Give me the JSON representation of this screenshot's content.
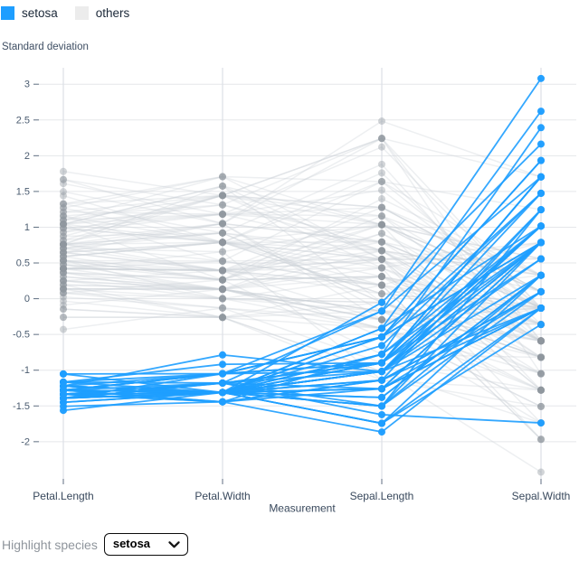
{
  "legend": {
    "items": [
      {
        "label": "setosa",
        "color": "#1E9EFF"
      },
      {
        "label": "others",
        "color": "#ececec"
      }
    ]
  },
  "controls": {
    "label": "Highlight species",
    "selected": "setosa"
  },
  "chart_data": {
    "type": "line",
    "variant": "parallel-coordinates",
    "title": "",
    "ylabel": "Standard deviation",
    "xlabel": "Measurement",
    "categories": [
      "Petal.Length",
      "Petal.Width",
      "Sepal.Length",
      "Sepal.Width"
    ],
    "yticks": [
      3,
      2.5,
      2,
      1.5,
      1,
      0.5,
      0,
      -0.5,
      -1,
      -1.5,
      -2
    ],
    "ytick_labels": [
      "3",
      "2.5",
      "2",
      "1.5",
      "1",
      "0.5",
      "0",
      "-0.5",
      "-1",
      "-1.5",
      "-2"
    ],
    "ylim": [
      -2.52,
      3.23
    ],
    "grid": true,
    "legend_position": "top-left",
    "highlight": "setosa",
    "normalization": "each measurement standardized to z-scores (standard deviations) across all 150 samples; rows below are raw values in category order",
    "series": [
      {
        "name": "setosa",
        "highlight": true,
        "color": "#1E9EFF",
        "dot_color": "#1E9EFF",
        "rows": [
          [
            1.4,
            0.2,
            5.1,
            3.5
          ],
          [
            1.4,
            0.2,
            4.9,
            3.0
          ],
          [
            1.3,
            0.2,
            4.7,
            3.2
          ],
          [
            1.5,
            0.2,
            4.6,
            3.1
          ],
          [
            1.4,
            0.2,
            5.0,
            3.6
          ],
          [
            1.7,
            0.4,
            5.4,
            3.9
          ],
          [
            1.4,
            0.3,
            4.6,
            3.4
          ],
          [
            1.5,
            0.2,
            5.0,
            3.4
          ],
          [
            1.4,
            0.2,
            4.4,
            2.9
          ],
          [
            1.5,
            0.1,
            4.9,
            3.1
          ],
          [
            1.5,
            0.2,
            5.4,
            3.7
          ],
          [
            1.6,
            0.2,
            4.8,
            3.4
          ],
          [
            1.4,
            0.1,
            4.8,
            3.0
          ],
          [
            1.1,
            0.1,
            4.3,
            3.0
          ],
          [
            1.2,
            0.2,
            5.8,
            4.0
          ],
          [
            1.5,
            0.4,
            5.7,
            4.4
          ],
          [
            1.3,
            0.4,
            5.4,
            3.9
          ],
          [
            1.4,
            0.3,
            5.1,
            3.5
          ],
          [
            1.7,
            0.3,
            5.7,
            3.8
          ],
          [
            1.5,
            0.3,
            5.1,
            3.8
          ],
          [
            1.7,
            0.2,
            5.4,
            3.4
          ],
          [
            1.5,
            0.4,
            5.1,
            3.7
          ],
          [
            1.0,
            0.2,
            4.6,
            3.6
          ],
          [
            1.7,
            0.5,
            5.1,
            3.3
          ],
          [
            1.9,
            0.2,
            4.8,
            3.4
          ],
          [
            1.6,
            0.2,
            5.0,
            3.0
          ],
          [
            1.6,
            0.4,
            5.0,
            3.4
          ],
          [
            1.5,
            0.2,
            5.2,
            3.5
          ],
          [
            1.4,
            0.2,
            5.2,
            3.4
          ],
          [
            1.6,
            0.2,
            4.7,
            3.2
          ],
          [
            1.6,
            0.2,
            4.8,
            3.1
          ],
          [
            1.5,
            0.4,
            5.4,
            3.4
          ],
          [
            1.5,
            0.1,
            5.2,
            4.1
          ],
          [
            1.4,
            0.2,
            5.5,
            4.2
          ],
          [
            1.5,
            0.2,
            4.9,
            3.1
          ],
          [
            1.2,
            0.2,
            5.0,
            3.2
          ],
          [
            1.3,
            0.2,
            5.5,
            3.5
          ],
          [
            1.4,
            0.1,
            4.9,
            3.6
          ],
          [
            1.3,
            0.2,
            4.4,
            3.0
          ],
          [
            1.5,
            0.2,
            5.1,
            3.4
          ],
          [
            1.3,
            0.3,
            5.0,
            3.5
          ],
          [
            1.3,
            0.3,
            4.5,
            2.3
          ],
          [
            1.3,
            0.2,
            4.4,
            3.2
          ],
          [
            1.6,
            0.6,
            5.0,
            3.5
          ],
          [
            1.9,
            0.4,
            5.1,
            3.8
          ],
          [
            1.4,
            0.3,
            4.8,
            3.0
          ],
          [
            1.6,
            0.2,
            5.1,
            3.8
          ],
          [
            1.4,
            0.2,
            4.6,
            3.2
          ],
          [
            1.5,
            0.2,
            5.3,
            3.7
          ],
          [
            1.4,
            0.2,
            5.0,
            3.3
          ]
        ]
      },
      {
        "name": "others",
        "highlight": false,
        "color": "#cbd0d6",
        "dot_color": "#8e959d",
        "rows": [
          [
            4.7,
            1.4,
            7.0,
            3.2
          ],
          [
            4.5,
            1.5,
            6.4,
            3.2
          ],
          [
            4.9,
            1.5,
            6.9,
            3.1
          ],
          [
            4.0,
            1.3,
            5.5,
            2.3
          ],
          [
            4.6,
            1.5,
            6.5,
            2.8
          ],
          [
            4.5,
            1.3,
            5.7,
            2.8
          ],
          [
            4.7,
            1.6,
            6.3,
            3.3
          ],
          [
            3.3,
            1.0,
            4.9,
            2.4
          ],
          [
            4.6,
            1.3,
            6.6,
            2.9
          ],
          [
            3.9,
            1.4,
            5.2,
            2.7
          ],
          [
            3.5,
            1.0,
            5.0,
            2.0
          ],
          [
            4.2,
            1.5,
            5.9,
            3.0
          ],
          [
            4.0,
            1.0,
            6.0,
            2.2
          ],
          [
            4.7,
            1.4,
            6.1,
            2.9
          ],
          [
            3.6,
            1.3,
            5.6,
            2.9
          ],
          [
            4.4,
            1.4,
            6.7,
            3.1
          ],
          [
            4.5,
            1.5,
            5.6,
            3.0
          ],
          [
            4.1,
            1.0,
            5.8,
            2.7
          ],
          [
            4.5,
            1.5,
            6.2,
            2.2
          ],
          [
            3.9,
            1.1,
            5.6,
            2.5
          ],
          [
            4.8,
            1.8,
            5.9,
            3.2
          ],
          [
            4.0,
            1.3,
            6.1,
            2.8
          ],
          [
            4.9,
            1.5,
            6.3,
            2.5
          ],
          [
            4.7,
            1.2,
            6.1,
            2.8
          ],
          [
            4.3,
            1.3,
            6.4,
            2.9
          ],
          [
            4.4,
            1.4,
            6.6,
            3.0
          ],
          [
            4.8,
            1.4,
            6.8,
            2.8
          ],
          [
            5.0,
            1.7,
            6.7,
            3.0
          ],
          [
            4.5,
            1.5,
            6.0,
            2.9
          ],
          [
            3.5,
            1.0,
            5.7,
            2.6
          ],
          [
            3.8,
            1.1,
            5.5,
            2.4
          ],
          [
            3.7,
            1.0,
            5.5,
            2.4
          ],
          [
            3.9,
            1.2,
            5.8,
            2.7
          ],
          [
            5.1,
            1.6,
            6.0,
            2.7
          ],
          [
            4.5,
            1.5,
            5.4,
            3.0
          ],
          [
            4.5,
            1.6,
            6.0,
            3.4
          ],
          [
            4.7,
            1.5,
            6.7,
            3.1
          ],
          [
            4.4,
            1.3,
            6.3,
            2.3
          ],
          [
            4.1,
            1.3,
            5.6,
            3.0
          ],
          [
            4.0,
            1.3,
            5.5,
            2.5
          ],
          [
            4.4,
            1.2,
            5.5,
            2.6
          ],
          [
            4.6,
            1.4,
            6.1,
            3.0
          ],
          [
            4.0,
            1.2,
            5.8,
            2.6
          ],
          [
            3.3,
            1.0,
            5.0,
            2.3
          ],
          [
            4.2,
            1.3,
            5.6,
            2.7
          ],
          [
            4.2,
            1.2,
            5.7,
            3.0
          ],
          [
            4.2,
            1.3,
            5.7,
            2.9
          ],
          [
            4.3,
            1.3,
            6.2,
            2.9
          ],
          [
            3.0,
            1.1,
            5.1,
            2.5
          ],
          [
            4.1,
            1.3,
            5.7,
            2.8
          ],
          [
            6.0,
            2.5,
            6.3,
            3.3
          ],
          [
            5.1,
            1.9,
            5.8,
            2.7
          ],
          [
            5.9,
            2.1,
            7.1,
            3.0
          ],
          [
            5.6,
            1.8,
            6.3,
            2.9
          ],
          [
            5.8,
            2.2,
            6.5,
            3.0
          ],
          [
            6.6,
            2.1,
            7.6,
            3.0
          ],
          [
            4.5,
            1.7,
            4.9,
            2.5
          ],
          [
            6.3,
            1.8,
            7.3,
            2.9
          ],
          [
            5.8,
            1.8,
            6.7,
            2.5
          ],
          [
            6.1,
            2.5,
            7.2,
            3.6
          ],
          [
            5.1,
            2.0,
            6.5,
            3.2
          ],
          [
            5.3,
            1.9,
            6.4,
            2.7
          ],
          [
            5.5,
            2.1,
            6.8,
            3.0
          ],
          [
            5.0,
            2.0,
            5.7,
            2.5
          ],
          [
            5.1,
            2.4,
            5.8,
            2.8
          ],
          [
            5.3,
            2.3,
            6.4,
            3.2
          ],
          [
            5.5,
            1.8,
            6.5,
            3.0
          ],
          [
            6.7,
            2.2,
            7.7,
            3.8
          ],
          [
            6.9,
            2.3,
            7.7,
            2.6
          ],
          [
            5.0,
            1.5,
            6.0,
            2.2
          ],
          [
            5.7,
            2.3,
            6.9,
            3.2
          ],
          [
            4.9,
            2.0,
            5.6,
            2.8
          ],
          [
            6.7,
            2.0,
            7.7,
            2.8
          ],
          [
            4.9,
            1.8,
            6.3,
            2.7
          ],
          [
            5.7,
            2.1,
            6.7,
            3.3
          ],
          [
            6.0,
            1.8,
            7.2,
            3.2
          ],
          [
            4.8,
            1.8,
            6.2,
            2.8
          ],
          [
            4.9,
            1.8,
            6.1,
            3.0
          ],
          [
            5.6,
            2.1,
            6.4,
            2.8
          ],
          [
            5.8,
            1.6,
            7.2,
            3.0
          ],
          [
            6.1,
            1.9,
            7.4,
            2.8
          ],
          [
            6.4,
            2.0,
            7.9,
            3.8
          ],
          [
            5.6,
            2.2,
            6.4,
            2.8
          ],
          [
            5.1,
            1.5,
            6.3,
            2.8
          ],
          [
            5.6,
            1.4,
            6.1,
            2.6
          ],
          [
            6.1,
            2.3,
            7.7,
            3.0
          ],
          [
            5.6,
            2.4,
            6.3,
            3.4
          ],
          [
            5.5,
            1.8,
            6.4,
            3.1
          ],
          [
            4.8,
            1.8,
            6.0,
            3.0
          ],
          [
            5.4,
            2.1,
            6.9,
            3.1
          ],
          [
            5.6,
            2.4,
            6.7,
            3.1
          ],
          [
            5.1,
            2.3,
            6.9,
            3.1
          ],
          [
            5.1,
            1.9,
            5.8,
            2.7
          ],
          [
            5.9,
            2.3,
            6.8,
            3.2
          ],
          [
            5.7,
            2.5,
            6.7,
            3.3
          ],
          [
            5.2,
            2.3,
            6.7,
            3.0
          ],
          [
            5.0,
            1.9,
            6.3,
            2.5
          ],
          [
            5.2,
            2.0,
            6.5,
            3.0
          ],
          [
            5.4,
            2.3,
            6.2,
            3.4
          ],
          [
            5.1,
            1.8,
            5.9,
            3.0
          ]
        ]
      }
    ]
  }
}
